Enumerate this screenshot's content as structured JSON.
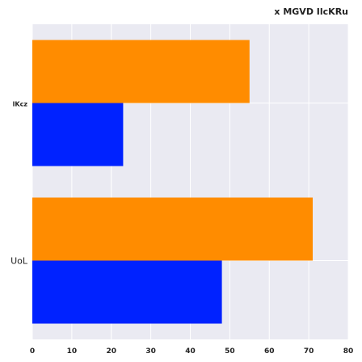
{
  "chart_data": {
    "type": "bar",
    "orientation": "horizontal",
    "title": "x MGVD IlcKRu",
    "categories": [
      "lKcz",
      "UoL"
    ],
    "series": [
      {
        "values": [
          55,
          71
        ],
        "color": "#ff8c00"
      },
      {
        "values": [
          23,
          48
        ],
        "color": "#0022ff"
      }
    ],
    "xlim": [
      0,
      80
    ],
    "xticks": [
      0,
      10,
      20,
      30,
      40,
      50,
      60,
      70,
      80
    ],
    "grid": true,
    "legend": "none",
    "background": "#eaeaf2",
    "gridColor": "#ffffff"
  }
}
